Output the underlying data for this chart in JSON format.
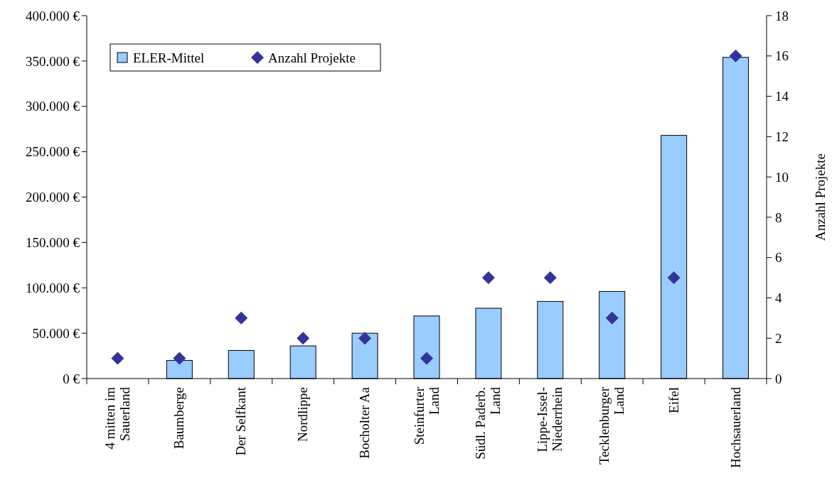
{
  "chart_data": {
    "type": "bar",
    "categories": [
      "4 mitten im Sauerland",
      "Baumberge",
      "Der Selfkant",
      "Nordlippe",
      "Bocholter Aa",
      "Steinfurter Land",
      "Südl. Paderb. Land",
      "Lippe-Issel-Niederrhein",
      "Tecklenburger Land",
      "Eifel",
      "Hochsauerland"
    ],
    "series": [
      {
        "name": "ELER-Mittel",
        "color": "#99ccff",
        "values": [
          0,
          20000,
          31000,
          36000,
          50000,
          69000,
          77500,
          85000,
          96000,
          268000,
          354000
        ]
      },
      {
        "name": "Anzahl Projekte",
        "type": "scatter",
        "axis": "y2",
        "color": "#333399",
        "marker": "diamond",
        "values": [
          1,
          1,
          3,
          2,
          2,
          1,
          5,
          5,
          3,
          5,
          16
        ]
      }
    ],
    "ylim": [
      0,
      400000
    ],
    "yticks": [
      {
        "value": 0,
        "label": "0 €"
      },
      {
        "value": 50000,
        "label": "50.000 €"
      },
      {
        "value": 100000,
        "label": "100.000 €"
      },
      {
        "value": 150000,
        "label": "150.000 €"
      },
      {
        "value": 200000,
        "label": "200.000 €"
      },
      {
        "value": 250000,
        "label": "250.000 €"
      },
      {
        "value": 300000,
        "label": "300.000 €"
      },
      {
        "value": 350000,
        "label": "350.000 €"
      },
      {
        "value": 400000,
        "label": "400.000 €"
      }
    ],
    "y2lim": [
      0,
      18
    ],
    "y2ticks": [
      0,
      2,
      4,
      6,
      8,
      10,
      12,
      14,
      16,
      18
    ],
    "y2label": "Anzahl Projekte",
    "legend": "top left",
    "grid": false
  }
}
